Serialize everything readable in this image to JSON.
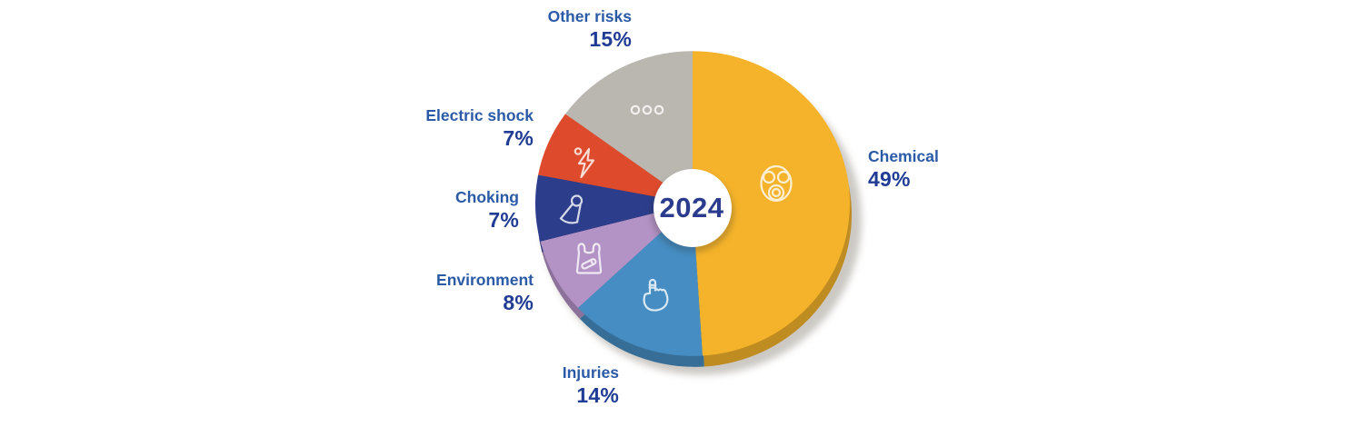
{
  "chart_data": {
    "type": "pie",
    "center_label": "2024",
    "unit": "%",
    "order": "clockwise-from-top",
    "label_color": "#2B5AA7",
    "percent_color": "#203C94",
    "slices": [
      {
        "label": "Chemical",
        "value": 49,
        "pct_label": "49%",
        "color": "#F4B32A",
        "icon": "gas-mask-icon"
      },
      {
        "label": "Injuries",
        "value": 14,
        "pct_label": "14%",
        "color": "#458DC2",
        "icon": "hand-bandaged-finger-icon"
      },
      {
        "label": "Environment",
        "value": 8,
        "pct_label": "8%",
        "color": "#B392C5",
        "icon": "plastic-bag-icon"
      },
      {
        "label": "Choking",
        "value": 7,
        "pct_label": "7%",
        "color": "#2C3E8B",
        "icon": "choking-hazard-cone-icon"
      },
      {
        "label": "Electric shock",
        "value": 7,
        "pct_label": "7%",
        "color": "#DE4B2C",
        "icon": "electric-shock-icon"
      },
      {
        "label": "Other risks",
        "value": 15,
        "pct_label": "15%",
        "color": "#BAB6B0",
        "icon": "dots-icon"
      }
    ]
  }
}
